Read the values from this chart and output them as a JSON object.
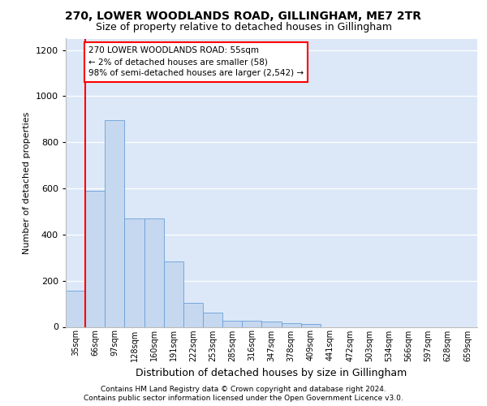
{
  "title_line1": "270, LOWER WOODLANDS ROAD, GILLINGHAM, ME7 2TR",
  "title_line2": "Size of property relative to detached houses in Gillingham",
  "xlabel": "Distribution of detached houses by size in Gillingham",
  "ylabel": "Number of detached properties",
  "footnote1": "Contains HM Land Registry data © Crown copyright and database right 2024.",
  "footnote2": "Contains public sector information licensed under the Open Government Licence v3.0.",
  "bar_labels": [
    "35sqm",
    "66sqm",
    "97sqm",
    "128sqm",
    "160sqm",
    "191sqm",
    "222sqm",
    "253sqm",
    "285sqm",
    "316sqm",
    "347sqm",
    "378sqm",
    "409sqm",
    "441sqm",
    "472sqm",
    "503sqm",
    "534sqm",
    "566sqm",
    "597sqm",
    "628sqm",
    "659sqm"
  ],
  "bar_values": [
    155,
    590,
    895,
    470,
    470,
    285,
    105,
    62,
    28,
    28,
    22,
    15,
    12,
    0,
    0,
    0,
    0,
    0,
    0,
    0,
    0
  ],
  "bar_color": "#c5d8f0",
  "bar_edge_color": "#6a9fd8",
  "ylim_min": 0,
  "ylim_max": 1250,
  "yticks": [
    0,
    200,
    400,
    600,
    800,
    1000,
    1200
  ],
  "annotation_text": "270 LOWER WOODLANDS ROAD: 55sqm\n← 2% of detached houses are smaller (58)\n98% of semi-detached houses are larger (2,542) →",
  "red_line_x": 0.5,
  "background_color": "#dce8f8",
  "grid_color": "#ffffff",
  "title1_fontsize": 10,
  "title2_fontsize": 9,
  "ylabel_fontsize": 8,
  "xlabel_fontsize": 9,
  "tick_fontsize": 7,
  "footnote_fontsize": 6.5
}
